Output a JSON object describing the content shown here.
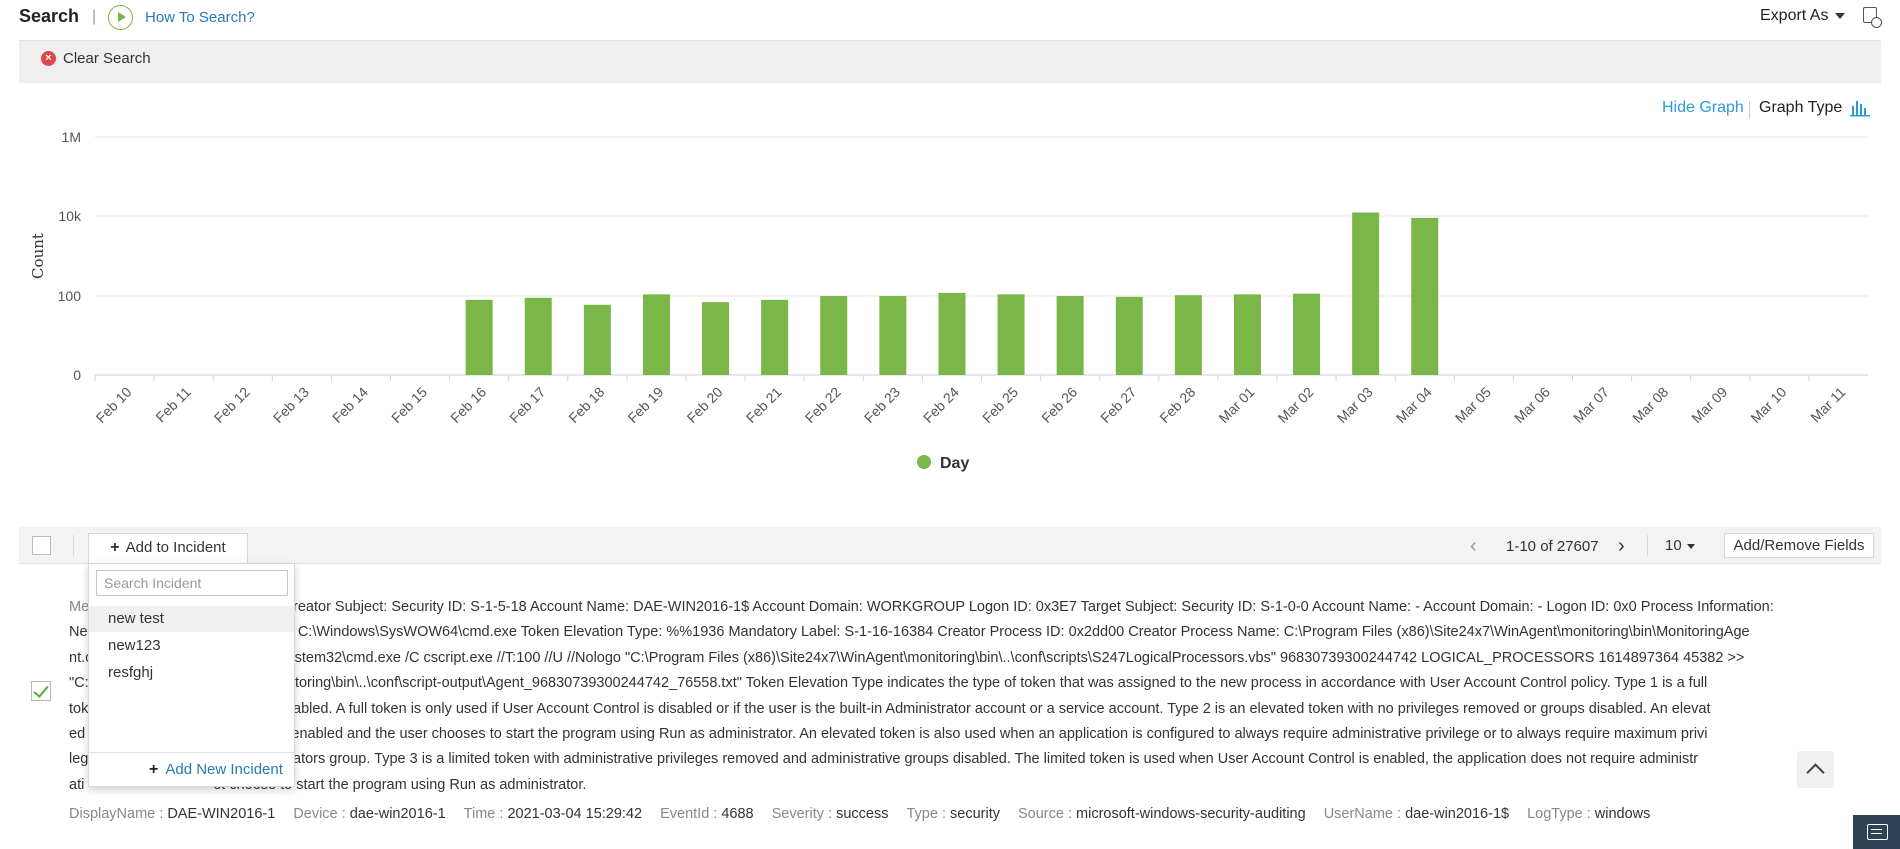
{
  "header": {
    "title": "Search",
    "separator": "|",
    "help_link": "How To Search?",
    "export_label": "Export As"
  },
  "clear_search": {
    "label": "Clear Search"
  },
  "graph_controls": {
    "hide_graph": "Hide Graph",
    "graph_type": "Graph Type"
  },
  "chart_data": {
    "type": "bar",
    "ylabel": "Count",
    "yscale": "log",
    "y_ticks": [
      "1M",
      "10k",
      "100",
      "0"
    ],
    "legend": {
      "position": "bottom-center",
      "entries": [
        "Day"
      ]
    },
    "grid": true,
    "series": [
      {
        "name": "Day",
        "color": "#7ab648",
        "values": [
          0,
          0,
          0,
          0,
          0,
          0,
          80,
          90,
          60,
          110,
          70,
          80,
          100,
          100,
          120,
          110,
          100,
          95,
          105,
          110,
          115,
          13000,
          9500,
          0,
          0,
          0,
          0,
          0,
          0,
          0
        ]
      }
    ],
    "categories": [
      "Feb 10",
      "Feb 11",
      "Feb 12",
      "Feb 13",
      "Feb 14",
      "Feb 15",
      "Feb 16",
      "Feb 17",
      "Feb 18",
      "Feb 19",
      "Feb 20",
      "Feb 21",
      "Feb 22",
      "Feb 23",
      "Feb 24",
      "Feb 25",
      "Feb 26",
      "Feb 27",
      "Feb 28",
      "Mar 01",
      "Mar 02",
      "Mar 03",
      "Mar 04",
      "Mar 05",
      "Mar 06",
      "Mar 07",
      "Mar 08",
      "Mar 09",
      "Mar 10",
      "Mar 11"
    ]
  },
  "results_toolbar": {
    "add_incident": "Add to Incident",
    "page_range": "1-10 of 27607",
    "page_size": "10",
    "fields_button": "Add/Remove Fields"
  },
  "incident_dropdown": {
    "search_placeholder": "Search Incident",
    "items": [
      "new test",
      "new123",
      "resfghj"
    ],
    "add_new": "Add New Incident"
  },
  "record": {
    "message_label": "Me",
    "message_lines": [
      "created. Creator Subject: Security ID: S-1-5-18 Account Name: DAE-WIN2016-1$ Account Domain: WORKGROUP Logon ID: 0x3E7 Target Subject: Security ID: S-1-0-0 Account Name: - Account Domain: - Logon ID: 0x0 Process Information:",
      "Ne                                  ess Name: C:\\Windows\\SysWOW64\\cmd.exe Token Elevation Type: %%1936 Mandatory Label: S-1-16-16384 Creator Process ID: 0x2dd00 Creator Process Name: C:\\Program Files (x86)\\Site24x7\\WinAgent\\monitoring\\bin\\MonitoringAge",
      "nt.c                               Windows\\system32\\cmd.exe /C cscript.exe //T:100 //U //Nologo \"C:\\Program Files (x86)\\Site24x7\\WinAgent\\monitoring\\bin\\..\\conf\\scripts\\S247LogicalProcessors.vbs\" 96830739300244742 LOGICAL_PROCESSORS 1614897364 45382 >>",
      "\"C:\\                              nAgent\\monitoring\\bin\\..\\conf\\script-output\\Agent_96830739300244742_76558.txt\" Token Elevation Type indicates the type of token that was assigned to the new process in accordance with User Account Control policy. Type 1 is a full",
      "tok                                r groups disabled. A full token is only used if User Account Control is disabled or if the user is the built-in Administrator account or a service account. Type 2 is an elevated token with no privileges removed or groups disabled. An elevat",
      "ed                                 t Control is enabled and the user chooses to start the program using Run as administrator. An elevated token is also used when an application is configured to always require administrative privilege or to always require maximum privi",
      "leg                               he Administrators group. Type 3 is a limited token with administrative privileges removed and administrative groups disabled. The limited token is used when User Account Control is enabled, the application does not require administr",
      "ati                                ot choose to start the program using Run as administrator."
    ],
    "meta": [
      {
        "key": "DisplayName",
        "value": "DAE-WIN2016-1"
      },
      {
        "key": "Device",
        "value": "dae-win2016-1"
      },
      {
        "key": "Time",
        "value": "2021-03-04 15:29:42"
      },
      {
        "key": "EventId",
        "value": "4688"
      },
      {
        "key": "Severity",
        "value": "success"
      },
      {
        "key": "Type",
        "value": "security"
      },
      {
        "key": "Source",
        "value": "microsoft-windows-security-auditing"
      },
      {
        "key": "UserName",
        "value": "dae-win2016-1$"
      },
      {
        "key": "LogType",
        "value": "windows"
      }
    ]
  },
  "colors": {
    "accent_green": "#7ab648",
    "link_blue": "#2a7ab8",
    "graph_link": "#2a9bd6",
    "danger_red": "#e0474c",
    "chat_bg": "#2f4356"
  }
}
